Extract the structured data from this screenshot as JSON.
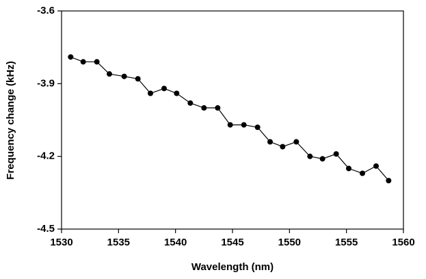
{
  "chart_data": {
    "type": "line",
    "x_label": "Wavelength (nm)",
    "y_label": "Frequency change (kHz)",
    "x": [
      1530.8,
      1531.9,
      1533.1,
      1534.2,
      1535.5,
      1536.7,
      1537.8,
      1539.0,
      1540.1,
      1541.3,
      1542.5,
      1543.7,
      1544.8,
      1546.0,
      1547.2,
      1548.3,
      1549.4,
      1550.6,
      1551.8,
      1552.9,
      1554.1,
      1555.2,
      1556.4,
      1557.6,
      1558.7
    ],
    "values": [
      -3.79,
      -3.81,
      -3.81,
      -3.86,
      -3.87,
      -3.88,
      -3.94,
      -3.92,
      -3.94,
      -3.98,
      -4.0,
      -4.0,
      -4.07,
      -4.07,
      -4.08,
      -4.14,
      -4.16,
      -4.14,
      -4.2,
      -4.21,
      -4.19,
      -4.25,
      -4.27,
      -4.24,
      -4.3
    ],
    "color": "#000000",
    "xlim": [
      1530,
      1560
    ],
    "xticks": [
      1530,
      1535,
      1540,
      1545,
      1550,
      1555,
      1560
    ],
    "ylim": [
      -4.5,
      -3.6
    ],
    "yticks": [
      -4.5,
      -4.2,
      -3.9,
      -3.6
    ],
    "grid": false
  }
}
